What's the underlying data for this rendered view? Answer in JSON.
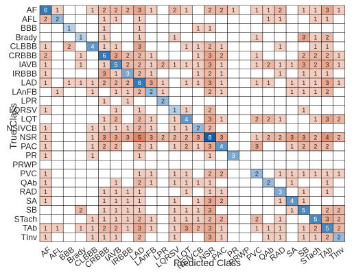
{
  "chart_data": {
    "type": "heatmap",
    "title": "",
    "xlabel": "Predicted Class",
    "ylabel": "True Class",
    "classes": [
      "AF",
      "AFL",
      "BBB",
      "Brady",
      "CLBBB",
      "CRBBB",
      "IAVB",
      "IRBBB",
      "LAD",
      "LAnFB",
      "LPR",
      "LQRSV",
      "LQT",
      "NSIVCB",
      "NSR",
      "PAC",
      "PR",
      "PRWP",
      "PVC",
      "QAb",
      "RAD",
      "SA",
      "SB",
      "STach",
      "TAb",
      "TInv"
    ],
    "row_labels": [
      "AF",
      "AFL",
      "BBB",
      "Brady",
      "CLBBB",
      "CRBBB",
      "IAVB",
      "IRBBB",
      "LAD",
      "LAnFB",
      "LPR",
      "LQRSV",
      "LQT",
      "NSIVCB",
      "NSR",
      "PAC",
      "PR",
      "PRWP",
      "PVC",
      "QAb",
      "RAD",
      "SA",
      "SB",
      "STach",
      "TAb",
      "TInv"
    ],
    "col_labels": [
      "AF",
      "AFL",
      "BBB",
      "Brady",
      "CLBBB",
      "CRBBB",
      "IAVB",
      "IRBBB",
      "LAD",
      "LAnFB",
      "LPR",
      "LQRSV",
      "LQT",
      "NSIVCB",
      "NSR",
      "PAC",
      "PR",
      "PRWP",
      "PVC",
      "QAb",
      "RAD",
      "SA",
      "SB",
      "STach",
      "TAb",
      "TInv"
    ],
    "matrix": [
      [
        6,
        1,
        0,
        0,
        1,
        2,
        2,
        2,
        3,
        1,
        0,
        2,
        1,
        0,
        2,
        2,
        1,
        0,
        1,
        1,
        2,
        0,
        1,
        1,
        3,
        1
      ],
      [
        2,
        2,
        0,
        0,
        0,
        1,
        1,
        0,
        1,
        0,
        0,
        0,
        0,
        0,
        0,
        0,
        0,
        0,
        0,
        1,
        1,
        0,
        0,
        1,
        1,
        0
      ],
      [
        0,
        0,
        1,
        0,
        0,
        1,
        0,
        0,
        1,
        0,
        0,
        0,
        0,
        1,
        1,
        0,
        0,
        0,
        0,
        0,
        0,
        0,
        0,
        0,
        0,
        0
      ],
      [
        0,
        0,
        0,
        1,
        0,
        1,
        0,
        0,
        1,
        0,
        0,
        1,
        0,
        0,
        0,
        0,
        0,
        0,
        1,
        0,
        0,
        0,
        3,
        1,
        2,
        0
      ],
      [
        1,
        0,
        2,
        0,
        4,
        1,
        1,
        0,
        3,
        0,
        0,
        0,
        1,
        1,
        2,
        1,
        0,
        0,
        0,
        0,
        1,
        0,
        0,
        1,
        1,
        0
      ],
      [
        2,
        0,
        0,
        1,
        0,
        6,
        3,
        2,
        2,
        1,
        0,
        0,
        0,
        1,
        3,
        2,
        0,
        0,
        1,
        0,
        0,
        0,
        2,
        2,
        2,
        1
      ],
      [
        1,
        0,
        0,
        1,
        0,
        1,
        5,
        2,
        2,
        1,
        2,
        1,
        1,
        1,
        3,
        1,
        0,
        0,
        1,
        2,
        1,
        1,
        3,
        2,
        3,
        1
      ],
      [
        1,
        0,
        0,
        0,
        0,
        3,
        1,
        3,
        2,
        1,
        0,
        0,
        0,
        1,
        2,
        1,
        0,
        0,
        0,
        0,
        1,
        0,
        1,
        1,
        1,
        0
      ],
      [
        1,
        0,
        1,
        1,
        1,
        2,
        2,
        2,
        6,
        3,
        1,
        0,
        1,
        1,
        3,
        1,
        0,
        0,
        1,
        1,
        0,
        1,
        1,
        1,
        3,
        1
      ],
      [
        0,
        1,
        0,
        0,
        1,
        0,
        1,
        1,
        2,
        2,
        1,
        0,
        0,
        0,
        2,
        1,
        0,
        0,
        0,
        0,
        0,
        1,
        1,
        1,
        2,
        0
      ],
      [
        0,
        0,
        0,
        0,
        0,
        1,
        0,
        1,
        0,
        0,
        2,
        0,
        0,
        0,
        0,
        0,
        0,
        0,
        0,
        0,
        0,
        0,
        0,
        0,
        0,
        0
      ],
      [
        1,
        0,
        0,
        0,
        0,
        0,
        1,
        0,
        1,
        0,
        0,
        1,
        1,
        0,
        2,
        0,
        0,
        0,
        0,
        0,
        0,
        0,
        1,
        0,
        0,
        0
      ],
      [
        0,
        0,
        0,
        0,
        0,
        1,
        2,
        0,
        2,
        1,
        0,
        1,
        4,
        0,
        3,
        1,
        0,
        0,
        2,
        2,
        1,
        0,
        0,
        1,
        3,
        2
      ],
      [
        1,
        0,
        0,
        0,
        1,
        1,
        1,
        1,
        2,
        1,
        0,
        1,
        1,
        2,
        2,
        0,
        0,
        0,
        0,
        0,
        0,
        0,
        0,
        0,
        0,
        0
      ],
      [
        1,
        0,
        0,
        0,
        1,
        3,
        3,
        3,
        5,
        3,
        2,
        2,
        2,
        3,
        8,
        3,
        0,
        0,
        1,
        2,
        2,
        3,
        3,
        2,
        4,
        2
      ],
      [
        1,
        0,
        0,
        0,
        1,
        2,
        2,
        0,
        2,
        1,
        0,
        1,
        2,
        1,
        3,
        4,
        0,
        0,
        3,
        0,
        0,
        1,
        2,
        2,
        2,
        0
      ],
      [
        1,
        0,
        0,
        0,
        1,
        0,
        0,
        0,
        1,
        0,
        0,
        0,
        0,
        0,
        1,
        0,
        3,
        0,
        0,
        0,
        0,
        0,
        0,
        0,
        0,
        0
      ],
      [
        0,
        0,
        0,
        0,
        0,
        0,
        0,
        0,
        0,
        0,
        0,
        0,
        0,
        0,
        0,
        0,
        0,
        0,
        0,
        0,
        0,
        0,
        0,
        0,
        0,
        0
      ],
      [
        1,
        0,
        0,
        0,
        0,
        0,
        0,
        0,
        1,
        1,
        0,
        1,
        1,
        0,
        2,
        2,
        0,
        0,
        2,
        0,
        1,
        1,
        1,
        1,
        1,
        1
      ],
      [
        1,
        0,
        0,
        0,
        0,
        0,
        1,
        0,
        2,
        1,
        0,
        1,
        1,
        1,
        1,
        0,
        0,
        0,
        0,
        2,
        0,
        1,
        0,
        0,
        1,
        0
      ],
      [
        1,
        0,
        0,
        0,
        0,
        1,
        1,
        1,
        1,
        0,
        0,
        0,
        1,
        0,
        1,
        1,
        0,
        0,
        0,
        0,
        3,
        0,
        1,
        0,
        1,
        0
      ],
      [
        1,
        0,
        0,
        0,
        0,
        1,
        1,
        1,
        1,
        0,
        0,
        1,
        0,
        1,
        3,
        2,
        0,
        0,
        0,
        0,
        1,
        4,
        1,
        0,
        0,
        0
      ],
      [
        0,
        0,
        0,
        2,
        0,
        1,
        1,
        1,
        1,
        0,
        0,
        1,
        1,
        1,
        3,
        0,
        0,
        0,
        0,
        0,
        0,
        1,
        5,
        0,
        2,
        2
      ],
      [
        0,
        0,
        0,
        0,
        1,
        1,
        1,
        1,
        2,
        1,
        0,
        1,
        1,
        1,
        2,
        2,
        0,
        0,
        2,
        0,
        1,
        0,
        0,
        5,
        3,
        2
      ],
      [
        1,
        1,
        0,
        1,
        1,
        2,
        2,
        1,
        3,
        1,
        0,
        1,
        3,
        2,
        3,
        1,
        0,
        0,
        1,
        1,
        1,
        0,
        1,
        2,
        5,
        2
      ],
      [
        1,
        0,
        0,
        0,
        1,
        1,
        1,
        0,
        2,
        0,
        0,
        1,
        0,
        0,
        3,
        1,
        0,
        0,
        0,
        1,
        1,
        0,
        1,
        1,
        2,
        2
      ]
    ],
    "max_value": 8,
    "colors": {
      "diag_low": "#e8f1fa",
      "diag_high": "#0d5fa8",
      "off_low": "#fbeae3",
      "off_high": "#d2542a",
      "grid": "#000000",
      "dark_text": "#262626",
      "light_text": "#ffffff"
    }
  }
}
